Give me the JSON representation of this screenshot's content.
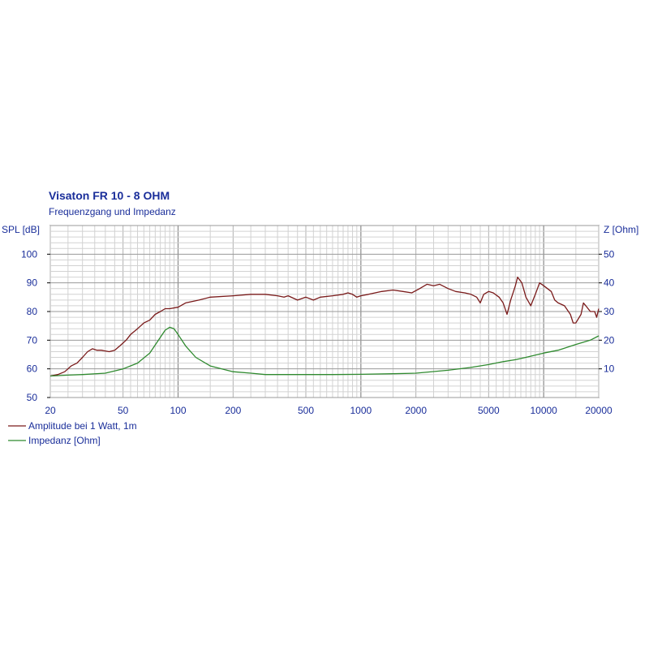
{
  "chart_data": {
    "type": "line",
    "title": "Visaton FR 10 - 8 OHM",
    "subtitle": "Frequenzgang und Impedanz",
    "x_scale": "log",
    "xlim": [
      20,
      20000
    ],
    "x_ticks": [
      20,
      50,
      100,
      200,
      500,
      1000,
      2000,
      5000,
      10000,
      20000
    ],
    "x_tick_labels": [
      "20",
      "50",
      "100",
      "200",
      "500",
      "1000",
      "2000",
      "5000",
      "10000",
      "20000"
    ],
    "y_left": {
      "label": "SPL [dB]",
      "lim": [
        50,
        110
      ],
      "ticks": [
        50,
        60,
        70,
        80,
        90,
        100
      ],
      "tick_labels": [
        "50",
        "60",
        "70",
        "80",
        "90",
        "100"
      ]
    },
    "y_right": {
      "label": "Z [Ohm]",
      "lim": [
        0,
        60
      ],
      "ticks": [
        10,
        20,
        30,
        40,
        50
      ],
      "tick_labels": [
        "10",
        "20",
        "30",
        "40",
        "50"
      ]
    },
    "grid": true,
    "legend_position": "bottom-left",
    "series": [
      {
        "name": "Amplitude bei 1 Watt, 1m",
        "axis": "left",
        "color": "#7a1a1a",
        "points": [
          [
            20,
            57.5
          ],
          [
            22,
            58
          ],
          [
            24,
            59
          ],
          [
            26,
            61
          ],
          [
            28,
            62
          ],
          [
            30,
            64
          ],
          [
            32,
            66
          ],
          [
            34,
            67
          ],
          [
            36,
            66.5
          ],
          [
            38,
            66.5
          ],
          [
            42,
            66
          ],
          [
            45,
            66.5
          ],
          [
            48,
            68
          ],
          [
            52,
            70
          ],
          [
            55,
            72
          ],
          [
            60,
            74
          ],
          [
            65,
            76
          ],
          [
            70,
            77
          ],
          [
            75,
            79
          ],
          [
            80,
            80
          ],
          [
            85,
            81
          ],
          [
            90,
            81
          ],
          [
            100,
            81.5
          ],
          [
            110,
            83
          ],
          [
            130,
            84
          ],
          [
            150,
            85
          ],
          [
            200,
            85.5
          ],
          [
            250,
            86
          ],
          [
            300,
            86
          ],
          [
            350,
            85.5
          ],
          [
            380,
            85
          ],
          [
            400,
            85.5
          ],
          [
            450,
            84
          ],
          [
            500,
            85
          ],
          [
            550,
            84
          ],
          [
            600,
            85
          ],
          [
            700,
            85.5
          ],
          [
            800,
            86
          ],
          [
            850,
            86.5
          ],
          [
            900,
            86
          ],
          [
            950,
            85
          ],
          [
            1000,
            85.5
          ],
          [
            1100,
            86
          ],
          [
            1300,
            87
          ],
          [
            1500,
            87.5
          ],
          [
            1700,
            87
          ],
          [
            1900,
            86.5
          ],
          [
            2100,
            88
          ],
          [
            2300,
            89.5
          ],
          [
            2500,
            89
          ],
          [
            2700,
            89.5
          ],
          [
            3000,
            88
          ],
          [
            3300,
            87
          ],
          [
            3700,
            86.5
          ],
          [
            4000,
            86
          ],
          [
            4300,
            85
          ],
          [
            4500,
            83
          ],
          [
            4700,
            86
          ],
          [
            5000,
            87
          ],
          [
            5300,
            86.5
          ],
          [
            5700,
            85
          ],
          [
            6000,
            83
          ],
          [
            6300,
            79
          ],
          [
            6600,
            84
          ],
          [
            7000,
            89
          ],
          [
            7200,
            92
          ],
          [
            7600,
            90
          ],
          [
            8000,
            85
          ],
          [
            8500,
            82
          ],
          [
            9000,
            86
          ],
          [
            9500,
            90
          ],
          [
            10000,
            89
          ],
          [
            11000,
            87
          ],
          [
            11500,
            84
          ],
          [
            12000,
            83
          ],
          [
            13000,
            82
          ],
          [
            14000,
            79
          ],
          [
            14500,
            76
          ],
          [
            15000,
            76
          ],
          [
            16000,
            79
          ],
          [
            16500,
            83
          ],
          [
            17000,
            82
          ],
          [
            18000,
            80
          ],
          [
            19000,
            80
          ],
          [
            19500,
            78
          ],
          [
            20000,
            81
          ]
        ]
      },
      {
        "name": "Impedanz [Ohm]",
        "axis": "right",
        "color": "#2f8a2f",
        "points": [
          [
            20,
            7.5
          ],
          [
            25,
            7.8
          ],
          [
            30,
            8
          ],
          [
            40,
            8.5
          ],
          [
            50,
            10
          ],
          [
            60,
            12
          ],
          [
            70,
            15.5
          ],
          [
            80,
            21
          ],
          [
            85,
            23.5
          ],
          [
            90,
            24.5
          ],
          [
            95,
            24
          ],
          [
            100,
            22
          ],
          [
            110,
            18
          ],
          [
            125,
            14
          ],
          [
            150,
            11
          ],
          [
            200,
            9
          ],
          [
            250,
            8.5
          ],
          [
            300,
            8
          ],
          [
            400,
            8
          ],
          [
            500,
            8
          ],
          [
            700,
            8
          ],
          [
            1000,
            8.1
          ],
          [
            1500,
            8.3
          ],
          [
            2000,
            8.5
          ],
          [
            3000,
            9.5
          ],
          [
            4000,
            10.5
          ],
          [
            5000,
            11.5
          ],
          [
            6000,
            12.5
          ],
          [
            7000,
            13.2
          ],
          [
            8000,
            14
          ],
          [
            10000,
            15.5
          ],
          [
            12000,
            16.5
          ],
          [
            15000,
            18.5
          ],
          [
            18000,
            20
          ],
          [
            20000,
            21.5
          ]
        ]
      }
    ]
  }
}
